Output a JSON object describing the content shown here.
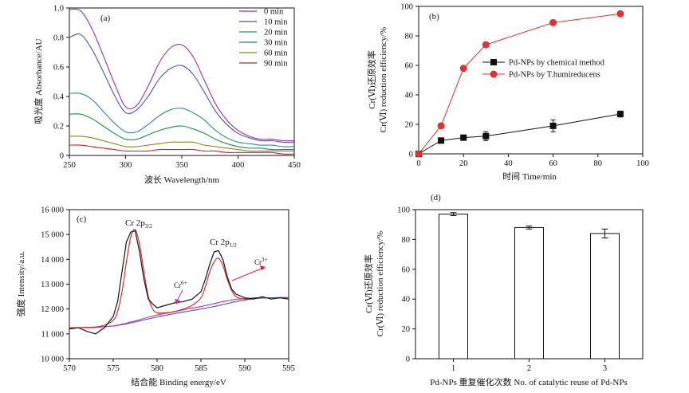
{
  "chart_data": [
    {
      "id": "a",
      "panel_label": "(a)",
      "type": "line",
      "xlabel": "波长 Wavelength/nm",
      "ylabel": "吸光度 Absorbance/AU",
      "xlim": [
        250,
        450
      ],
      "ylim": [
        0,
        1.0
      ],
      "xticks": [
        "250",
        "300",
        "350",
        "400",
        "450"
      ],
      "yticks": [
        "0",
        "0.2",
        "0.4",
        "0.6",
        "0.8",
        "1.0"
      ],
      "legend_position": "top-right",
      "x": [
        250,
        260,
        270,
        280,
        290,
        300,
        310,
        320,
        330,
        340,
        350,
        360,
        370,
        380,
        390,
        400,
        410,
        420,
        430,
        440,
        450
      ],
      "series": [
        {
          "name": "0 min",
          "color": "#9b2fae",
          "values": [
            0.99,
            0.98,
            0.86,
            0.68,
            0.49,
            0.33,
            0.34,
            0.47,
            0.63,
            0.73,
            0.75,
            0.67,
            0.51,
            0.35,
            0.24,
            0.17,
            0.13,
            0.11,
            0.11,
            0.1,
            0.1
          ]
        },
        {
          "name": "10 min",
          "color": "#4b52b3",
          "values": [
            0.8,
            0.82,
            0.72,
            0.57,
            0.41,
            0.29,
            0.31,
            0.4,
            0.52,
            0.59,
            0.61,
            0.55,
            0.43,
            0.3,
            0.21,
            0.15,
            0.12,
            0.1,
            0.1,
            0.09,
            0.09
          ]
        },
        {
          "name": "20 min",
          "color": "#2a8c8c",
          "values": [
            0.42,
            0.42,
            0.38,
            0.3,
            0.22,
            0.16,
            0.16,
            0.21,
            0.27,
            0.31,
            0.32,
            0.29,
            0.24,
            0.17,
            0.12,
            0.09,
            0.08,
            0.07,
            0.07,
            0.06,
            0.06
          ]
        },
        {
          "name": "30 min",
          "color": "#1f8a4c",
          "values": [
            0.28,
            0.28,
            0.25,
            0.2,
            0.15,
            0.11,
            0.11,
            0.14,
            0.17,
            0.19,
            0.2,
            0.18,
            0.15,
            0.11,
            0.08,
            0.06,
            0.05,
            0.05,
            0.04,
            0.04,
            0.04
          ]
        },
        {
          "name": "60 min",
          "color": "#8a8a1c",
          "values": [
            0.13,
            0.13,
            0.12,
            0.1,
            0.08,
            0.06,
            0.06,
            0.07,
            0.08,
            0.09,
            0.09,
            0.09,
            0.07,
            0.06,
            0.05,
            0.04,
            0.03,
            0.03,
            0.03,
            0.03,
            0.03
          ]
        },
        {
          "name": "90 min",
          "color": "#d01f2a",
          "values": [
            0.07,
            0.07,
            0.06,
            0.05,
            0.04,
            0.03,
            0.03,
            0.03,
            0.04,
            0.04,
            0.04,
            0.04,
            0.03,
            0.03,
            0.02,
            0.02,
            0.02,
            0.02,
            0.02,
            0.01,
            0.01
          ]
        }
      ]
    },
    {
      "id": "b",
      "panel_label": "(b)",
      "type": "line",
      "xlabel": "时间 Time/min",
      "ylabel_cn": "Cr(Ⅵ)还原效率",
      "ylabel_en": "Cr(Ⅵ) reduction efficiency/%",
      "xlim": [
        0,
        100
      ],
      "ylim": [
        0,
        100
      ],
      "xticks": [
        "0",
        "20",
        "40",
        "60",
        "80",
        "100"
      ],
      "yticks": [
        "0",
        "20",
        "40",
        "60",
        "80",
        "100"
      ],
      "legend_position": "center-right",
      "series": [
        {
          "name": "Pd-NPs by chemical method",
          "color": "#111111",
          "marker": "square",
          "x": [
            0,
            10,
            20,
            30,
            60,
            90
          ],
          "values": [
            0,
            9,
            11,
            12,
            19,
            27
          ],
          "errors": [
            0,
            1,
            1,
            3,
            4,
            2
          ]
        },
        {
          "name": "Pd-NPs by T.humireducens",
          "color": "#e03030",
          "marker": "circle",
          "x": [
            0,
            10,
            20,
            30,
            60,
            90
          ],
          "values": [
            0,
            19,
            58,
            74,
            89,
            95
          ],
          "errors": [
            0,
            0,
            0,
            0,
            0,
            0
          ]
        }
      ]
    },
    {
      "id": "c",
      "panel_label": "(c)",
      "type": "line",
      "xlabel": "结合能 Binding energy/eV",
      "ylabel": "强度 Intensity/a.u.",
      "xlim": [
        570,
        595
      ],
      "ylim": [
        10000,
        16000
      ],
      "xticks": [
        "570",
        "575",
        "580",
        "585",
        "590",
        "595"
      ],
      "yticks": [
        "10 000",
        "11 000",
        "12 000",
        "13 000",
        "14 000",
        "15 000",
        "16 000"
      ],
      "annotations": {
        "peak1_main": "Cr 2p",
        "peak1_sub": "3/2",
        "peak2_main": "Cr 2p",
        "peak2_sub": "1/2",
        "cr6": "Cr",
        "cr6_sup": "6+",
        "cr3": "Cr",
        "cr3_sup": "3+"
      },
      "x": [
        570,
        571,
        572,
        573,
        574,
        575,
        575.5,
        576,
        576.5,
        577,
        577.5,
        578,
        578.5,
        579,
        579.5,
        580,
        581,
        582,
        583,
        584,
        585,
        585.5,
        586,
        586.5,
        587,
        587.5,
        588,
        588.5,
        589,
        590,
        591,
        592,
        593,
        594,
        595
      ],
      "series": [
        {
          "name": "raw",
          "color": "#111111",
          "values": [
            11200,
            11250,
            11100,
            11000,
            11250,
            11700,
            12300,
            13500,
            14700,
            15100,
            15150,
            14300,
            13200,
            12400,
            12200,
            12050,
            12150,
            12250,
            12300,
            12400,
            12700,
            13200,
            13800,
            14300,
            14350,
            14000,
            13300,
            12800,
            12600,
            12450,
            12400,
            12500,
            12400,
            12450,
            12400
          ]
        },
        {
          "name": "fit-cr3",
          "color": "#e02020",
          "values": [
            11250,
            11250,
            11260,
            11280,
            11350,
            11550,
            11900,
            12700,
            13900,
            14900,
            15200,
            14600,
            13500,
            12500,
            12000,
            11850,
            11850,
            11900,
            12000,
            12150,
            12450,
            12900,
            13500,
            13900,
            14050,
            13750,
            13200,
            12750,
            12500,
            12400,
            12450,
            12450,
            12450,
            12450,
            12450
          ]
        },
        {
          "name": "fit-cr6",
          "color": "#c030a0",
          "values": [
            11250,
            11250,
            11260,
            11270,
            11290,
            11320,
            11350,
            11390,
            11430,
            11480,
            11520,
            11570,
            11620,
            11670,
            11720,
            11760,
            11830,
            11900,
            11970,
            12040,
            12100,
            12140,
            12180,
            12220,
            12260,
            12300,
            12330,
            12360,
            12390,
            12420,
            12440,
            12450,
            12450,
            12460,
            12460
          ]
        },
        {
          "name": "baseline",
          "color": "#3a5ac0",
          "values": [
            11250,
            11250,
            11260,
            11270,
            11290,
            11320,
            11340,
            11370,
            11400,
            11440,
            11480,
            11520,
            11560,
            11600,
            11640,
            11680,
            11750,
            11820,
            11880,
            11940,
            12000,
            12030,
            12070,
            12100,
            12140,
            12180,
            12220,
            12260,
            12300,
            12360,
            12410,
            12440,
            12450,
            12460,
            12460
          ]
        }
      ]
    },
    {
      "id": "d",
      "panel_label": "(d)",
      "type": "bar",
      "xlabel": "Pd-NPs 重复催化次数 No. of catalytic reuse of Pd-NPs",
      "ylabel_cn": "Cr(Ⅵ)还原效率",
      "ylabel_en": "Cr(Ⅵ) reduction efficiency/%",
      "ylim": [
        0,
        100
      ],
      "yticks": [
        "0",
        "20",
        "40",
        "60",
        "80",
        "100"
      ],
      "categories": [
        "1",
        "2",
        "3"
      ],
      "values": [
        97,
        88,
        84
      ],
      "errors": [
        1,
        1,
        3
      ]
    }
  ]
}
